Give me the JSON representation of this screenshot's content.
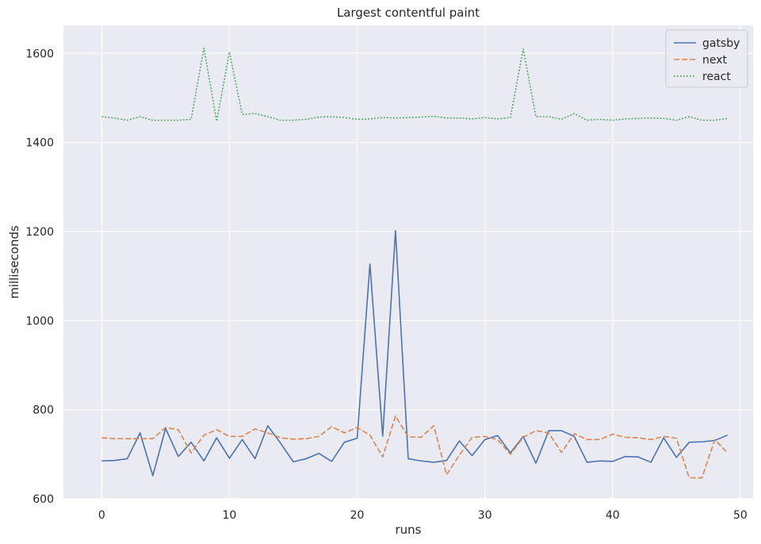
{
  "chart_data": {
    "type": "line",
    "title": "Largest contentful paint",
    "xlabel": "runs",
    "ylabel": "milliseconds",
    "xlim": [
      -3,
      51
    ],
    "ylim": [
      600,
      1663
    ],
    "xticks": [
      0,
      10,
      20,
      30,
      40,
      50
    ],
    "yticks": [
      600,
      800,
      1000,
      1200,
      1400,
      1600
    ],
    "grid": true,
    "legend_position": "top-right",
    "x": [
      0,
      1,
      2,
      3,
      4,
      5,
      6,
      7,
      8,
      9,
      10,
      11,
      12,
      13,
      14,
      15,
      16,
      17,
      18,
      19,
      20,
      21,
      22,
      23,
      24,
      25,
      26,
      27,
      28,
      29,
      30,
      31,
      32,
      33,
      34,
      35,
      36,
      37,
      38,
      39,
      40,
      41,
      42,
      43,
      44,
      45,
      46,
      47,
      48,
      49
    ],
    "series": [
      {
        "name": "gatsby",
        "color": "#4c72b0",
        "dash": "solid",
        "values": [
          685,
          686,
          690,
          748,
          652,
          758,
          695,
          727,
          685,
          737,
          691,
          733,
          690,
          764,
          725,
          683,
          690,
          702,
          684,
          727,
          736,
          1127,
          741,
          1202,
          690,
          685,
          682,
          686,
          730,
          697,
          733,
          742,
          703,
          740,
          680,
          753,
          753,
          740,
          682,
          685,
          684,
          695,
          694,
          682,
          737,
          693,
          727,
          728,
          731,
          743
        ]
      },
      {
        "name": "next",
        "color": "#dd8452",
        "dash": "dashed",
        "values": [
          737,
          735,
          735,
          735,
          735,
          760,
          755,
          703,
          743,
          755,
          740,
          740,
          757,
          748,
          737,
          734,
          735,
          740,
          762,
          748,
          760,
          743,
          694,
          786,
          739,
          738,
          764,
          654,
          698,
          738,
          740,
          733,
          700,
          738,
          753,
          748,
          704,
          746,
          733,
          733,
          745,
          738,
          737,
          733,
          740,
          736,
          647,
          647,
          733,
          703
        ]
      },
      {
        "name": "react",
        "color": "#55a868",
        "dash": "dotted",
        "values": [
          1458,
          1455,
          1450,
          1458,
          1450,
          1450,
          1450,
          1452,
          1612,
          1448,
          1603,
          1463,
          1465,
          1458,
          1450,
          1450,
          1452,
          1457,
          1458,
          1456,
          1452,
          1453,
          1456,
          1455,
          1456,
          1457,
          1459,
          1455,
          1455,
          1453,
          1456,
          1453,
          1456,
          1610,
          1458,
          1458,
          1452,
          1465,
          1450,
          1452,
          1450,
          1453,
          1454,
          1455,
          1454,
          1450,
          1458,
          1450,
          1450,
          1454
        ]
      }
    ]
  }
}
